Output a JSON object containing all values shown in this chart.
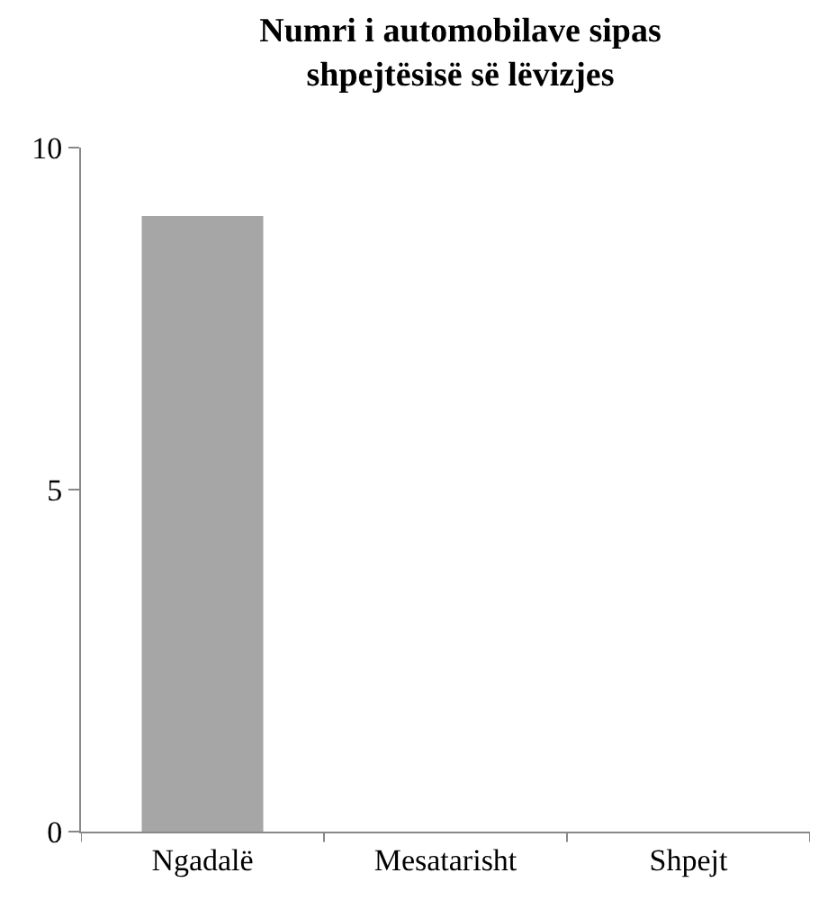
{
  "chart_data": {
    "type": "bar",
    "title": "Numri i automobilave sipas shpejtësisë së lëvizjes",
    "categories": [
      "Ngadalë",
      "Mesatarisht",
      "Shpejt"
    ],
    "values": [
      9,
      0,
      0
    ],
    "color": "#a6a6a6",
    "ylim": [
      0,
      10
    ],
    "yticks": [
      0,
      5,
      10
    ],
    "legend": false
  }
}
